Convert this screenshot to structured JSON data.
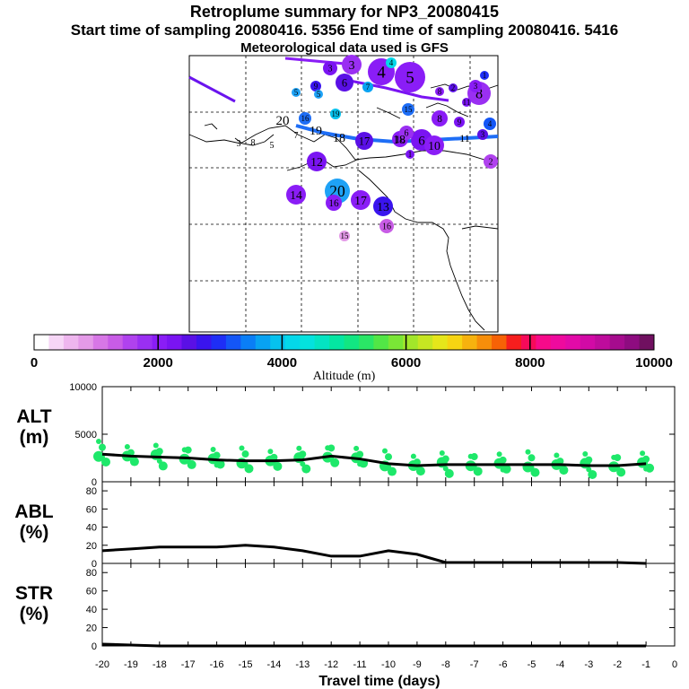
{
  "header": {
    "title": "Retroplume summary for NP3_20080415",
    "sampling": "Start time of sampling 20080416.  5356     End time of sampling 20080416.  5416",
    "met": "Meteorological data used is GFS"
  },
  "colorbar": {
    "stops": [
      "#ffffff",
      "#f6d6f6",
      "#eeb6ee",
      "#e49ae8",
      "#d777e6",
      "#c85ce6",
      "#b042ee",
      "#9a2ff2",
      "#8a1df6",
      "#7a14f2",
      "#5a10e6",
      "#3a14ee",
      "#1e2ef6",
      "#1456f6",
      "#0a7ef6",
      "#08a2f2",
      "#06c2ee",
      "#04d8ea",
      "#04e2de",
      "#04e4c2",
      "#04e6a2",
      "#12e682",
      "#2ae666",
      "#52e646",
      "#7ae636",
      "#a2e62a",
      "#c6e622",
      "#e6e61a",
      "#f6d412",
      "#f6b20e",
      "#f68e0a",
      "#f66206",
      "#f61e1e",
      "#f60a5a",
      "#f60a8a",
      "#ee0a9e",
      "#e20aa8",
      "#d20aa6",
      "#be0c9c",
      "#a60c8e",
      "#8e0c80",
      "#701060"
    ],
    "labels": [
      "0",
      "2000",
      "4000",
      "6000",
      "8000",
      "10000"
    ],
    "title": "Altitude (m)"
  },
  "map": {
    "plume_numbers": [
      "20",
      "19",
      "18",
      "17",
      "16",
      "15",
      "14",
      "13",
      "12",
      "11",
      "10",
      "9",
      "8",
      "7",
      "6",
      "5",
      "4",
      "3",
      "2",
      "1"
    ]
  },
  "chart_data": [
    {
      "type": "line",
      "panel": "ALT",
      "ylabel": "ALT\n(m)",
      "ylim": [
        0,
        10000
      ],
      "yticks": [
        "10000",
        "5000",
        "0"
      ],
      "x": [
        -20,
        -19,
        -18,
        -17,
        -16,
        -15,
        -14,
        -13,
        -12,
        -11,
        -10,
        -9,
        -8,
        -7,
        -6,
        -5,
        -4,
        -3,
        -2,
        -1
      ],
      "series": [
        {
          "name": "mean altitude",
          "values": [
            2900,
            2700,
            2600,
            2500,
            2300,
            2200,
            2200,
            2300,
            2700,
            2400,
            1900,
            1700,
            1800,
            1800,
            1800,
            1800,
            1800,
            1700,
            1700,
            1900
          ]
        }
      ],
      "scatter_color": "#1ee86a"
    },
    {
      "type": "line",
      "panel": "ABL",
      "ylabel": "ABL\n(%)",
      "ylim": [
        0,
        90
      ],
      "yticks": [
        "80",
        "60",
        "40",
        "20",
        "0"
      ],
      "x": [
        -20,
        -19,
        -18,
        -17,
        -16,
        -15,
        -14,
        -13,
        -12,
        -11,
        -10,
        -9,
        -8,
        -7,
        -6,
        -5,
        -4,
        -3,
        -2,
        -1
      ],
      "series": [
        {
          "name": "fraction in ABL",
          "values": [
            14,
            16,
            18,
            18,
            18,
            20,
            18,
            14,
            8,
            8,
            14,
            10,
            1,
            1,
            1,
            1,
            1,
            1,
            1,
            0
          ]
        }
      ]
    },
    {
      "type": "line",
      "panel": "STR",
      "ylabel": "STR\n(%)",
      "ylim": [
        0,
        90
      ],
      "yticks": [
        "80",
        "60",
        "40",
        "20",
        "0"
      ],
      "x": [
        -20,
        -19,
        -18,
        -17,
        -16,
        -15,
        -14,
        -13,
        -12,
        -11,
        -10,
        -9,
        -8,
        -7,
        -6,
        -5,
        -4,
        -3,
        -2,
        -1
      ],
      "series": [
        {
          "name": "fraction in stratosphere",
          "values": [
            2,
            1,
            0,
            0,
            0,
            0,
            0,
            0,
            0,
            0,
            0,
            0,
            0,
            0,
            0,
            0,
            0,
            0,
            0,
            0
          ]
        }
      ],
      "xticks": [
        "-20",
        "-19",
        "-18",
        "-17",
        "-16",
        "-15",
        "-14",
        "-13",
        "-12",
        "-11",
        "-10",
        "-9",
        "-8",
        "-7",
        "-6",
        "-5",
        "-4",
        "-3",
        "-2",
        "-1",
        "0"
      ],
      "xlabel": "Travel time (days)"
    }
  ]
}
